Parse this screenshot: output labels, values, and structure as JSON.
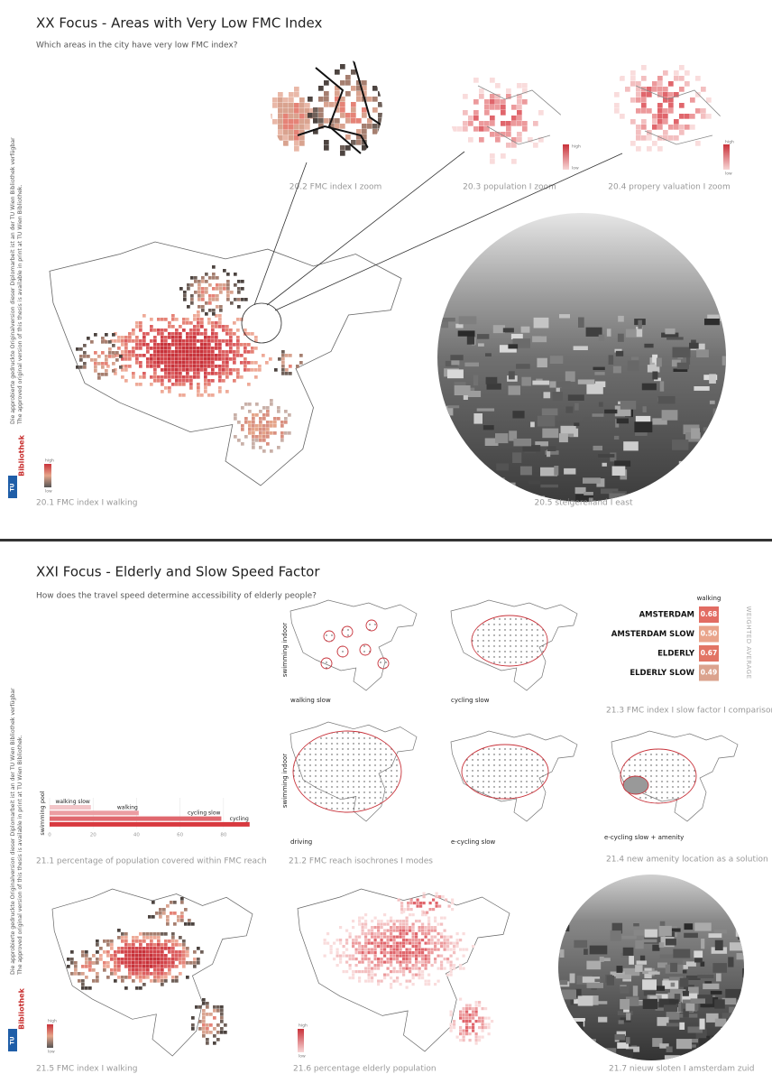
{
  "sections": [
    {
      "title": "XX Focus - Areas with Very Low FMC Index",
      "subtitle": "Which areas in the city have very low FMC index?",
      "sidebar": {
        "line1": "Die approbierte gedruckte Originalversion dieser Diplomarbeit ist an der TU Wien Bibliothek verfügbar",
        "line2": "The approved original version of this thesis is available in print at TU Wien Bibliothek."
      },
      "logo": {
        "mark": "TU",
        "name": "Bibliothek"
      },
      "figures": [
        {
          "caption": "20.2 FMC index I zoom"
        },
        {
          "caption": "20.3 population I zoom",
          "legend": {
            "high": "high",
            "low": "low"
          }
        },
        {
          "caption": "20.4 propery valuation I zoom",
          "legend": {
            "high": "high",
            "low": "low"
          }
        },
        {
          "caption": "20.1 FMC index I walking",
          "legend": {
            "high": "high",
            "low": "low"
          }
        },
        {
          "caption": "20.5 steigereiland I east"
        }
      ]
    },
    {
      "title": "XXI Focus - Elderly and Slow Speed Factor",
      "subtitle": "How does the travel speed determine accessibility of elderly people?",
      "sidebar": {
        "line1": "Die approbierte gedruckte Originalversion dieser Diplomarbeit ist an der TU Wien Bibliothek verfügbar",
        "line2": "The approved original version of this thesis is available in print at TU Wien Bibliothek."
      },
      "logo": {
        "mark": "TU",
        "name": "Bibliothek"
      },
      "isochrones": {
        "row_labels": [
          "swimming indoor",
          "swimming indoor"
        ],
        "maps": [
          "walking slow",
          "cycling slow",
          "driving",
          "e-cycling slow",
          "e-cycling slow + amenity"
        ]
      },
      "comparison": {
        "header": "walking",
        "side_label": "WEIGHTED AVERAGE",
        "rows": [
          {
            "label": "AMSTERDAM",
            "value": "0.68"
          },
          {
            "label": "AMSTERDAM SLOW",
            "value": "0.50"
          },
          {
            "label": "ELDERLY",
            "value": "0.67"
          },
          {
            "label": "ELDERLY SLOW",
            "value": "0.49"
          }
        ]
      },
      "chart": {
        "type": "bar",
        "y_label": "swimming pool",
        "series": [
          {
            "name": "walking slow",
            "value": 19,
            "color": "#f3c5c8"
          },
          {
            "name": "walking",
            "value": 41,
            "color": "#eb9da2"
          },
          {
            "name": "cycling slow",
            "value": 79,
            "color": "#e0686f"
          },
          {
            "name": "cycling",
            "value": 92,
            "color": "#d8393f"
          }
        ],
        "xlim": [
          0,
          95
        ],
        "xticks": [
          0,
          20,
          40,
          60,
          80
        ]
      },
      "figures": [
        {
          "caption": "21.1 percentage of population covered within FMC reach"
        },
        {
          "caption": "21.2 FMC reach isochrones I modes"
        },
        {
          "caption": "21.3 FMC index I slow factor I comparison"
        },
        {
          "caption": "21.4 new amenity location as a solution"
        },
        {
          "caption": "21.5 FMC index I walking",
          "legend": {
            "high": "high",
            "low": "low"
          }
        },
        {
          "caption": "21.6 percentage elderly population",
          "legend": {
            "high": "high",
            "low": "low"
          }
        },
        {
          "caption": "21.7 nieuw sloten I amsterdam zuid"
        }
      ]
    }
  ]
}
